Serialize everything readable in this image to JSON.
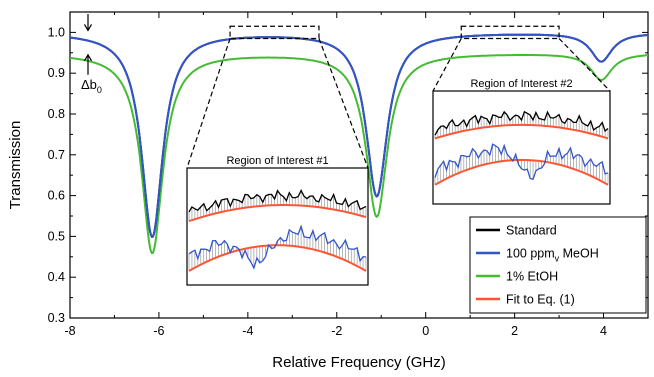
{
  "chart_data": {
    "type": "line",
    "xlabel": "Relative Frequency (GHz)",
    "ylabel": "Transmission",
    "xlim": [
      -8,
      5
    ],
    "ylim": [
      0.3,
      1.05
    ],
    "x_ticks": [
      "-8",
      "-6",
      "-4",
      "-2",
      "0",
      "2",
      "4"
    ],
    "x_tick_values": [
      -8,
      -6,
      -4,
      -2,
      0,
      2,
      4
    ],
    "y_ticks": [
      "0.3",
      "0.4",
      "0.5",
      "0.6",
      "0.7",
      "0.8",
      "0.9",
      "1.0"
    ],
    "y_tick_values": [
      0.3,
      0.4,
      0.5,
      0.6,
      0.7,
      0.8,
      0.9,
      1.0
    ],
    "grid": false,
    "legend_placement": "bottom-right",
    "series": [
      {
        "name": "Standard",
        "color": "#000000",
        "baseline": 1.0,
        "dips": [
          {
            "x": -6.15,
            "min": 0.5
          },
          {
            "x": -1.1,
            "min": 0.6
          },
          {
            "x": 3.95,
            "min": 0.93
          }
        ]
      },
      {
        "name": "100 ppmv MeOH",
        "color": "#3355cc",
        "baseline": 1.0,
        "dips": [
          {
            "x": -6.15,
            "min": 0.5
          },
          {
            "x": -1.1,
            "min": 0.6
          },
          {
            "x": 3.95,
            "min": 0.93
          }
        ]
      },
      {
        "name": "1% EtOH",
        "color": "#44bb33",
        "baseline": 0.95,
        "dips": [
          {
            "x": -6.15,
            "min": 0.46
          },
          {
            "x": -1.1,
            "min": 0.55
          },
          {
            "x": 3.95,
            "min": 0.885
          }
        ]
      },
      {
        "name": "Fit to Eq. (1)",
        "color": "#ff5533"
      }
    ],
    "annotations": {
      "delta_b": "Δb",
      "delta_b_sub": "0"
    },
    "insets": [
      {
        "title": "Region of Interest #1",
        "x_range": [
          -4.4,
          -2.4
        ]
      },
      {
        "title": "Region of Interest #2",
        "x_range": [
          0.8,
          3.0
        ]
      }
    ]
  },
  "legend": {
    "items": [
      {
        "label": "Standard",
        "color": "#000000"
      },
      {
        "label": "100 ppm",
        "sub": "v",
        "suffix": " MeOH",
        "color": "#3355cc"
      },
      {
        "label": "1% EtOH",
        "color": "#44bb33"
      },
      {
        "label": "Fit to Eq. (1)",
        "color": "#ff5533"
      }
    ]
  }
}
